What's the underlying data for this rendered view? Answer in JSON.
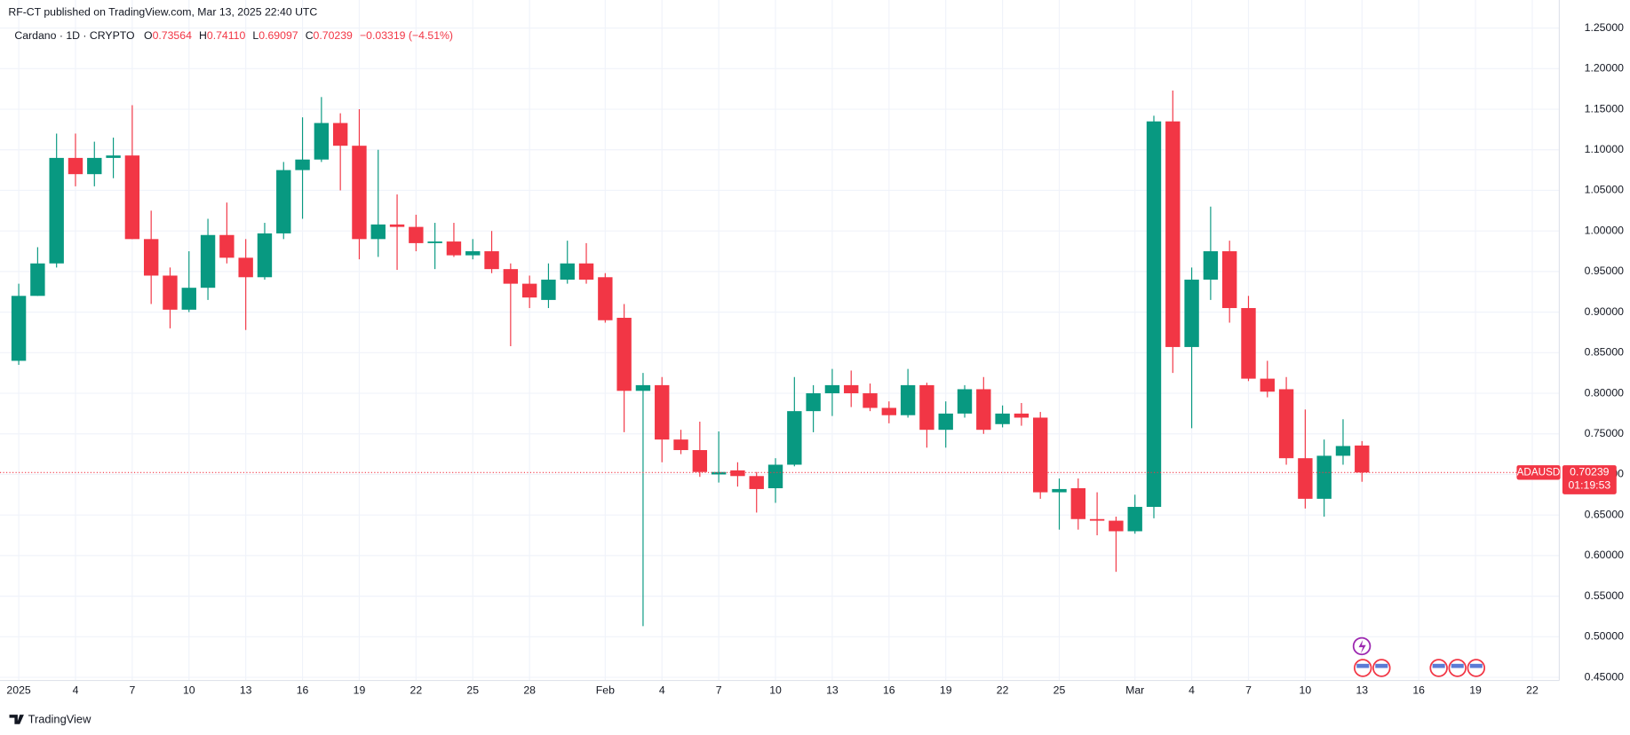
{
  "header": {
    "published": "RF-CT published on TradingView.com, Mar 13, 2025 22:40 UTC",
    "brand": "TradingView"
  },
  "chart_data": {
    "type": "candlestick",
    "legend": {
      "symbol": "Cardano · 1D · CRYPTO",
      "fields": [
        {
          "label": "O",
          "value": "0.73564"
        },
        {
          "label": "H",
          "value": "0.74110"
        },
        {
          "label": "L",
          "value": "0.69097"
        },
        {
          "label": "C",
          "value": "0.70239"
        }
      ],
      "change": "−0.03319 (−4.51%)"
    },
    "last_price_label": {
      "symbol": "ADAUSD",
      "price": "0.70239",
      "countdown": "01:19:53"
    },
    "up_color": "#089981",
    "down_color": "#f23645",
    "x": [
      0,
      1,
      2,
      3,
      4,
      5,
      6,
      7,
      8,
      9,
      10,
      11,
      12,
      13,
      14,
      15,
      16,
      17,
      18,
      19,
      20,
      21,
      22,
      23,
      24,
      25,
      26,
      27,
      28,
      29,
      30,
      31,
      32,
      33,
      34,
      35,
      36,
      37,
      38,
      39,
      40,
      41,
      42,
      43,
      44,
      45,
      46,
      47,
      48,
      49,
      50,
      51,
      52,
      53,
      54,
      55,
      56,
      57,
      58,
      59,
      60,
      61,
      62,
      63,
      64,
      65,
      66,
      67,
      68,
      69,
      70,
      71
    ],
    "open": [
      0.84,
      0.92,
      0.96,
      1.09,
      1.07,
      1.09,
      1.093,
      0.99,
      0.945,
      0.903,
      0.93,
      0.995,
      0.967,
      0.943,
      0.997,
      1.075,
      1.088,
      1.133,
      1.105,
      0.99,
      1.008,
      1.005,
      0.985,
      0.987,
      0.97,
      0.975,
      0.953,
      0.935,
      0.915,
      0.94,
      0.96,
      0.943,
      0.893,
      0.803,
      0.81,
      0.743,
      0.73,
      0.7,
      0.705,
      0.698,
      0.683,
      0.712,
      0.778,
      0.8,
      0.81,
      0.8,
      0.782,
      0.773,
      0.81,
      0.755,
      0.775,
      0.805,
      0.762,
      0.775,
      0.77,
      0.678,
      0.683,
      0.645,
      0.643,
      0.63,
      0.66,
      1.135,
      0.857,
      0.94,
      0.975,
      0.905,
      0.818,
      0.805,
      0.72,
      0.67,
      0.723,
      0.73564
    ],
    "high": [
      0.935,
      0.98,
      1.12,
      1.12,
      1.11,
      1.115,
      1.155,
      1.025,
      0.955,
      0.975,
      1.015,
      1.035,
      0.99,
      1.01,
      1.085,
      1.14,
      1.165,
      1.145,
      1.15,
      1.1,
      1.045,
      1.02,
      1.01,
      1.01,
      0.99,
      1.0,
      0.96,
      0.945,
      0.96,
      0.988,
      0.985,
      0.948,
      0.91,
      0.825,
      0.82,
      0.755,
      0.765,
      0.753,
      0.715,
      0.703,
      0.72,
      0.82,
      0.81,
      0.83,
      0.828,
      0.812,
      0.79,
      0.83,
      0.813,
      0.79,
      0.81,
      0.82,
      0.785,
      0.788,
      0.777,
      0.695,
      0.695,
      0.678,
      0.648,
      0.675,
      1.142,
      1.173,
      0.955,
      1.03,
      0.988,
      0.92,
      0.84,
      0.82,
      0.78,
      0.743,
      0.768,
      0.7411
    ],
    "low": [
      0.835,
      0.92,
      0.955,
      1.055,
      1.055,
      1.065,
      0.99,
      0.91,
      0.88,
      0.9,
      0.915,
      0.96,
      0.878,
      0.94,
      0.99,
      1.015,
      1.085,
      1.05,
      0.965,
      0.968,
      0.952,
      0.975,
      0.953,
      0.968,
      0.965,
      0.948,
      0.858,
      0.905,
      0.905,
      0.935,
      0.935,
      0.887,
      0.752,
      0.513,
      0.715,
      0.725,
      0.697,
      0.69,
      0.685,
      0.653,
      0.665,
      0.71,
      0.752,
      0.772,
      0.783,
      0.778,
      0.763,
      0.77,
      0.733,
      0.733,
      0.77,
      0.75,
      0.758,
      0.76,
      0.67,
      0.632,
      0.632,
      0.625,
      0.58,
      0.627,
      0.646,
      0.825,
      0.757,
      0.915,
      0.887,
      0.815,
      0.795,
      0.712,
      0.658,
      0.648,
      0.712,
      0.69097
    ],
    "close": [
      0.92,
      0.96,
      1.09,
      1.07,
      1.09,
      1.093,
      0.99,
      0.945,
      0.903,
      0.93,
      0.995,
      0.967,
      0.943,
      0.997,
      1.075,
      1.088,
      1.133,
      1.105,
      0.99,
      1.008,
      1.005,
      0.985,
      0.987,
      0.97,
      0.975,
      0.953,
      0.935,
      0.918,
      0.94,
      0.96,
      0.94,
      0.89,
      0.803,
      0.81,
      0.743,
      0.73,
      0.703,
      0.703,
      0.698,
      0.682,
      0.712,
      0.778,
      0.8,
      0.81,
      0.8,
      0.782,
      0.773,
      0.81,
      0.755,
      0.775,
      0.805,
      0.755,
      0.775,
      0.77,
      0.678,
      0.682,
      0.645,
      0.643,
      0.63,
      0.66,
      1.135,
      0.857,
      0.94,
      0.975,
      0.905,
      0.818,
      0.802,
      0.72,
      0.67,
      0.723,
      0.735,
      0.70239
    ],
    "xlim": [
      -0.99,
      81.43
    ],
    "xticks": [
      {
        "value": 0,
        "label": "2025"
      },
      {
        "value": 3,
        "label": "4"
      },
      {
        "value": 6,
        "label": "7"
      },
      {
        "value": 9,
        "label": "10"
      },
      {
        "value": 12,
        "label": "13"
      },
      {
        "value": 15,
        "label": "16"
      },
      {
        "value": 18,
        "label": "19"
      },
      {
        "value": 21,
        "label": "22"
      },
      {
        "value": 24,
        "label": "25"
      },
      {
        "value": 27,
        "label": "28"
      },
      {
        "value": 31,
        "label": "Feb"
      },
      {
        "value": 34,
        "label": "4"
      },
      {
        "value": 37,
        "label": "7"
      },
      {
        "value": 40,
        "label": "10"
      },
      {
        "value": 43,
        "label": "13"
      },
      {
        "value": 46,
        "label": "16"
      },
      {
        "value": 49,
        "label": "19"
      },
      {
        "value": 52,
        "label": "22"
      },
      {
        "value": 55,
        "label": "25"
      },
      {
        "value": 59,
        "label": "Mar"
      },
      {
        "value": 62,
        "label": "4"
      },
      {
        "value": 65,
        "label": "7"
      },
      {
        "value": 68,
        "label": "10"
      },
      {
        "value": 71,
        "label": "13"
      },
      {
        "value": 74,
        "label": "16"
      },
      {
        "value": 77,
        "label": "19"
      },
      {
        "value": 80,
        "label": "22"
      }
    ],
    "ylim": [
      0.45,
      1.25
    ],
    "yticks": [
      {
        "value": 0.45,
        "label": "0.45000"
      },
      {
        "value": 0.5,
        "label": "0.50000"
      },
      {
        "value": 0.55,
        "label": "0.55000"
      },
      {
        "value": 0.6,
        "label": "0.60000"
      },
      {
        "value": 0.65,
        "label": "0.65000"
      },
      {
        "value": 0.7,
        "label": "0.70000"
      },
      {
        "value": 0.75,
        "label": "0.75000"
      },
      {
        "value": 0.8,
        "label": "0.80000"
      },
      {
        "value": 0.85,
        "label": "0.85000"
      },
      {
        "value": 0.9,
        "label": "0.90000"
      },
      {
        "value": 0.95,
        "label": "0.95000"
      },
      {
        "value": 1.0,
        "label": "1.00000"
      },
      {
        "value": 1.05,
        "label": "1.05000"
      },
      {
        "value": 1.1,
        "label": "1.10000"
      },
      {
        "value": 1.15,
        "label": "1.15000"
      },
      {
        "value": 1.2,
        "label": "1.20000"
      },
      {
        "value": 1.25,
        "label": "1.25000"
      }
    ],
    "grid": true
  }
}
